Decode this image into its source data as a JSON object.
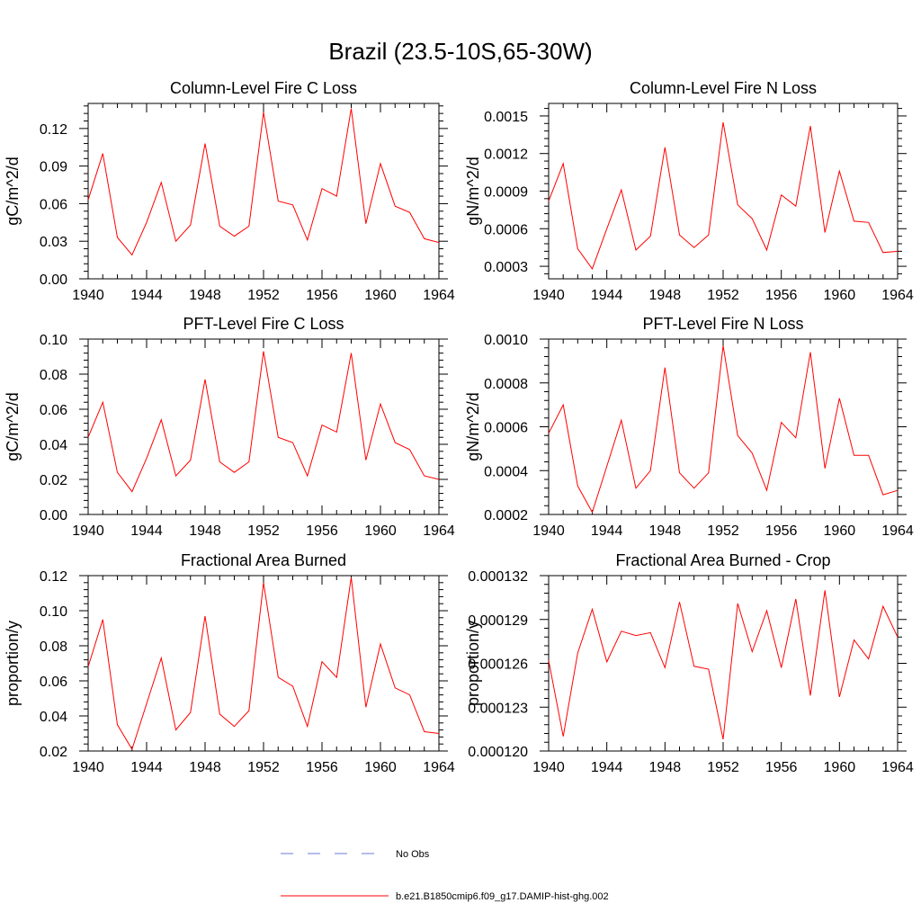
{
  "title": "Brazil (23.5-10S,65-30W)",
  "legend": {
    "entries": [
      {
        "label": "No Obs",
        "color": "#6b7bd6",
        "style": "dashed"
      },
      {
        "label": "b.e21.B1850cmip6.f09_g17.DAMIP-hist-ghg.002",
        "color": "#ff0000",
        "style": "solid"
      }
    ]
  },
  "chart_data": [
    {
      "type": "line",
      "title": "Column-Level Fire C Loss",
      "ylabel": "gC/m^2/d",
      "x": [
        1940,
        1941,
        1942,
        1943,
        1944,
        1945,
        1946,
        1947,
        1948,
        1949,
        1950,
        1951,
        1952,
        1953,
        1954,
        1955,
        1956,
        1957,
        1958,
        1959,
        1960,
        1961,
        1962,
        1963,
        1964
      ],
      "xlim": [
        1940,
        1964
      ],
      "xticks": [
        1940,
        1944,
        1948,
        1952,
        1956,
        1960,
        1964
      ],
      "ylim": [
        0.0,
        0.14
      ],
      "yticks": [
        0.0,
        0.03,
        0.06,
        0.09,
        0.12
      ],
      "yticklabels": [
        "0.00",
        "0.03",
        "0.06",
        "0.09",
        "0.12"
      ],
      "series": [
        {
          "color": "#ff0000",
          "values": [
            0.063,
            0.1,
            0.033,
            0.019,
            0.045,
            0.077,
            0.03,
            0.043,
            0.108,
            0.042,
            0.034,
            0.042,
            0.133,
            0.062,
            0.059,
            0.031,
            0.072,
            0.066,
            0.136,
            0.044,
            0.092,
            0.058,
            0.053,
            0.032,
            0.029
          ]
        }
      ]
    },
    {
      "type": "line",
      "title": "Column-Level Fire N Loss",
      "ylabel": "gN/m^2/d",
      "x": [
        1940,
        1941,
        1942,
        1943,
        1944,
        1945,
        1946,
        1947,
        1948,
        1949,
        1950,
        1951,
        1952,
        1953,
        1954,
        1955,
        1956,
        1957,
        1958,
        1959,
        1960,
        1961,
        1962,
        1963,
        1964
      ],
      "xlim": [
        1940,
        1964
      ],
      "xticks": [
        1940,
        1944,
        1948,
        1952,
        1956,
        1960,
        1964
      ],
      "ylim": [
        0.0002,
        0.0016
      ],
      "yticks": [
        0.0003,
        0.0006,
        0.0009,
        0.0012,
        0.0015
      ],
      "yticklabels": [
        "0.0003",
        "0.0006",
        "0.0009",
        "0.0012",
        "0.0015"
      ],
      "series": [
        {
          "color": "#ff0000",
          "values": [
            0.00082,
            0.00112,
            0.00044,
            0.00028,
            0.0006,
            0.00091,
            0.00043,
            0.00054,
            0.00125,
            0.00055,
            0.00045,
            0.00055,
            0.00145,
            0.00079,
            0.00068,
            0.00043,
            0.00087,
            0.00078,
            0.00142,
            0.00057,
            0.00106,
            0.00066,
            0.00065,
            0.00041,
            0.00042
          ]
        }
      ]
    },
    {
      "type": "line",
      "title": "PFT-Level Fire C Loss",
      "ylabel": "gC/m^2/d",
      "x": [
        1940,
        1941,
        1942,
        1943,
        1944,
        1945,
        1946,
        1947,
        1948,
        1949,
        1950,
        1951,
        1952,
        1953,
        1954,
        1955,
        1956,
        1957,
        1958,
        1959,
        1960,
        1961,
        1962,
        1963,
        1964
      ],
      "xlim": [
        1940,
        1964
      ],
      "xticks": [
        1940,
        1944,
        1948,
        1952,
        1956,
        1960,
        1964
      ],
      "ylim": [
        0.0,
        0.1
      ],
      "yticks": [
        0.0,
        0.02,
        0.04,
        0.06,
        0.08,
        0.1
      ],
      "yticklabels": [
        "0.00",
        "0.02",
        "0.04",
        "0.06",
        "0.08",
        "0.10"
      ],
      "series": [
        {
          "color": "#ff0000",
          "values": [
            0.044,
            0.064,
            0.024,
            0.013,
            0.032,
            0.054,
            0.022,
            0.031,
            0.077,
            0.03,
            0.024,
            0.03,
            0.093,
            0.044,
            0.041,
            0.022,
            0.051,
            0.047,
            0.092,
            0.031,
            0.063,
            0.041,
            0.037,
            0.022,
            0.02
          ]
        }
      ]
    },
    {
      "type": "line",
      "title": "PFT-Level Fire N Loss",
      "ylabel": "gN/m^2/d",
      "x": [
        1940,
        1941,
        1942,
        1943,
        1944,
        1945,
        1946,
        1947,
        1948,
        1949,
        1950,
        1951,
        1952,
        1953,
        1954,
        1955,
        1956,
        1957,
        1958,
        1959,
        1960,
        1961,
        1962,
        1963,
        1964
      ],
      "xlim": [
        1940,
        1964
      ],
      "xticks": [
        1940,
        1944,
        1948,
        1952,
        1956,
        1960,
        1964
      ],
      "ylim": [
        0.0002,
        0.001
      ],
      "yticks": [
        0.0002,
        0.0004,
        0.0006,
        0.0008,
        0.001
      ],
      "yticklabels": [
        "0.0002",
        "0.0004",
        "0.0006",
        "0.0008",
        "0.0010"
      ],
      "series": [
        {
          "color": "#ff0000",
          "values": [
            0.00057,
            0.0007,
            0.00033,
            0.00021,
            0.00042,
            0.00063,
            0.00032,
            0.0004,
            0.00087,
            0.00039,
            0.00032,
            0.00039,
            0.00097,
            0.00056,
            0.00048,
            0.00031,
            0.00062,
            0.00055,
            0.00094,
            0.00041,
            0.00073,
            0.00047,
            0.00047,
            0.00029,
            0.00031
          ]
        }
      ]
    },
    {
      "type": "line",
      "title": "Fractional Area Burned",
      "ylabel": "proportion/y",
      "x": [
        1940,
        1941,
        1942,
        1943,
        1944,
        1945,
        1946,
        1947,
        1948,
        1949,
        1950,
        1951,
        1952,
        1953,
        1954,
        1955,
        1956,
        1957,
        1958,
        1959,
        1960,
        1961,
        1962,
        1963,
        1964
      ],
      "xlim": [
        1940,
        1964
      ],
      "xticks": [
        1940,
        1944,
        1948,
        1952,
        1956,
        1960,
        1964
      ],
      "ylim": [
        0.02,
        0.12
      ],
      "yticks": [
        0.02,
        0.04,
        0.06,
        0.08,
        0.1,
        0.12
      ],
      "yticklabels": [
        "0.02",
        "0.04",
        "0.06",
        "0.08",
        "0.10",
        "0.12"
      ],
      "series": [
        {
          "color": "#ff0000",
          "values": [
            0.068,
            0.095,
            0.035,
            0.021,
            0.047,
            0.073,
            0.032,
            0.042,
            0.097,
            0.041,
            0.034,
            0.043,
            0.116,
            0.062,
            0.057,
            0.034,
            0.071,
            0.062,
            0.119,
            0.045,
            0.081,
            0.056,
            0.052,
            0.031,
            0.03
          ]
        }
      ]
    },
    {
      "type": "line",
      "title": "Fractional Area Burned - Crop",
      "ylabel": "proportion/y",
      "x": [
        1940,
        1941,
        1942,
        1943,
        1944,
        1945,
        1946,
        1947,
        1948,
        1949,
        1950,
        1951,
        1952,
        1953,
        1954,
        1955,
        1956,
        1957,
        1958,
        1959,
        1960,
        1961,
        1962,
        1963,
        1964
      ],
      "xlim": [
        1940,
        1964
      ],
      "xticks": [
        1940,
        1944,
        1948,
        1952,
        1956,
        1960,
        1964
      ],
      "ylim": [
        0.00012,
        0.000132
      ],
      "yticks": [
        0.00012,
        0.000123,
        0.000126,
        0.000129,
        0.000132
      ],
      "yticklabels": [
        "0.000120",
        "0.000123",
        "0.000126",
        "0.000129",
        "0.000132"
      ],
      "series": [
        {
          "color": "#ff0000",
          "values": [
            0.0001262,
            0.000121,
            0.0001267,
            0.0001297,
            0.0001261,
            0.0001282,
            0.0001279,
            0.0001281,
            0.0001257,
            0.0001302,
            0.0001258,
            0.0001256,
            0.0001208,
            0.0001301,
            0.0001268,
            0.0001296,
            0.0001257,
            0.0001304,
            0.0001238,
            0.000131,
            0.0001237,
            0.0001276,
            0.0001263,
            0.0001299,
            0.0001278
          ]
        }
      ]
    }
  ]
}
